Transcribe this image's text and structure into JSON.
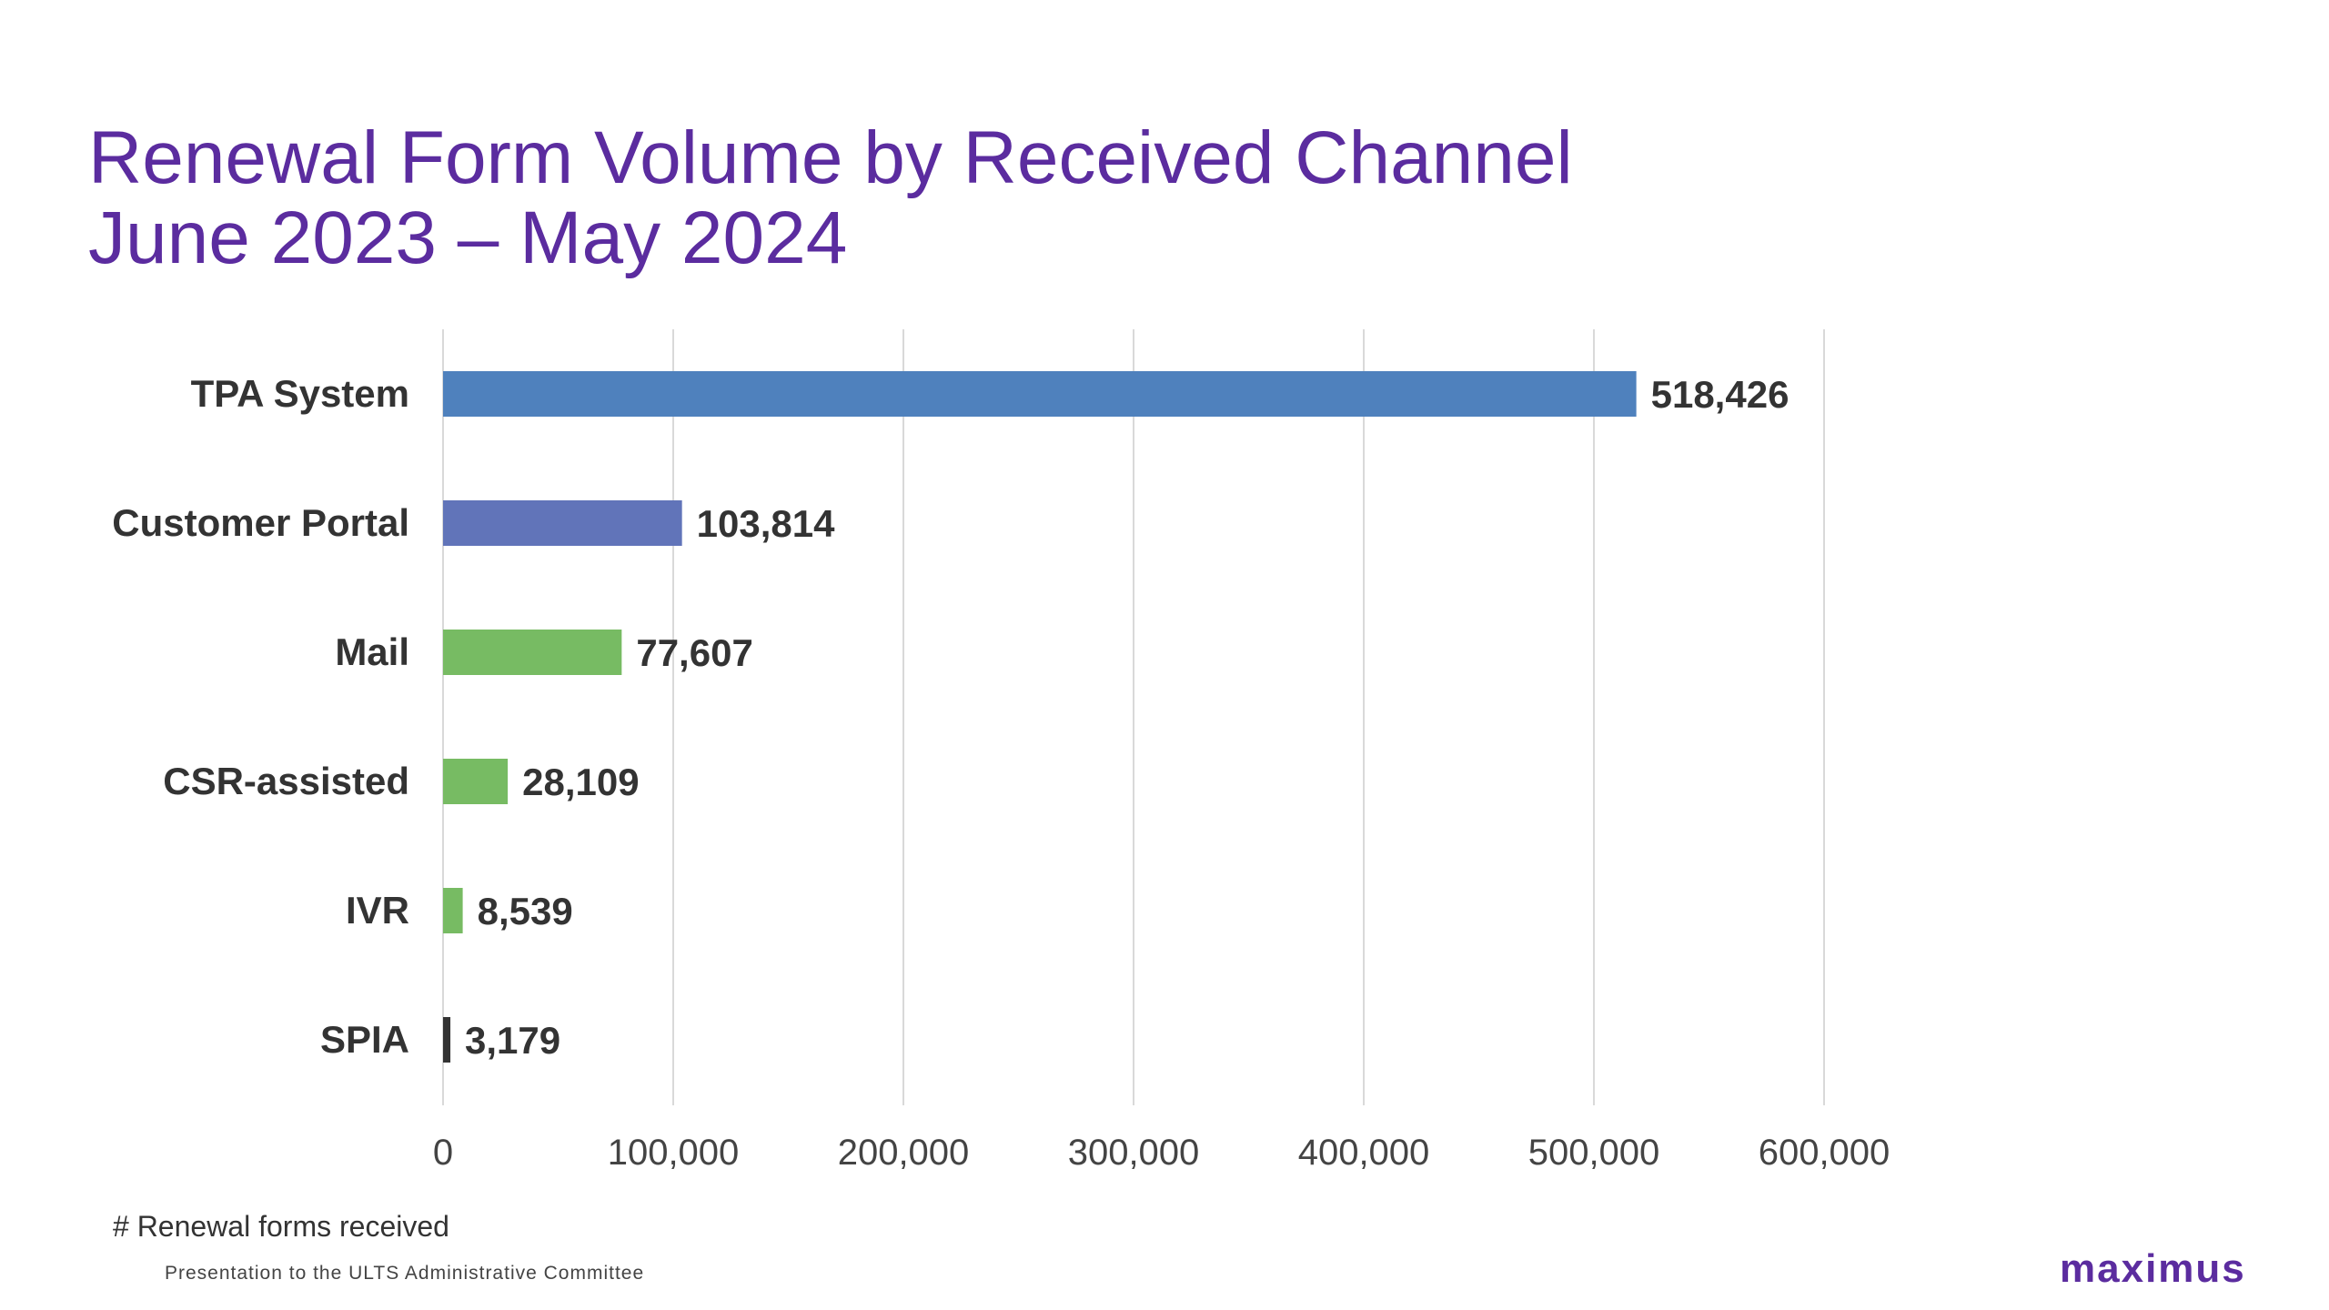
{
  "title": {
    "line1": "Renewal Form Volume by Received Channel",
    "line2": "June 2023 – May 2024"
  },
  "footer": {
    "presentation": "Presentation to the ULTS Administrative Committee",
    "brand": "maximus"
  },
  "colors": {
    "title": "#5b2c9f",
    "gridline": "#d9d9d9",
    "text": "#333333"
  },
  "chart_data": {
    "type": "bar",
    "orientation": "horizontal",
    "categories": [
      "TPA System",
      "Customer Portal",
      "Mail",
      "CSR-assisted",
      "IVR",
      "SPIA"
    ],
    "values": [
      518426,
      103814,
      77607,
      28109,
      8539,
      3179
    ],
    "value_labels": [
      "518,426",
      "103,814",
      "77,607",
      "28,109",
      "8,539",
      "3,179"
    ],
    "bar_colors": [
      "#4f81bd",
      "#6174b9",
      "#77bb63",
      "#77bb63",
      "#77bb63",
      "#333333"
    ],
    "xlabel": "# Renewal forms received",
    "ylabel": "",
    "xlim": [
      0,
      600000
    ],
    "xticks": [
      0,
      100000,
      200000,
      300000,
      400000,
      500000,
      600000
    ],
    "xtick_labels": [
      "0",
      "100,000",
      "200,000",
      "300,000",
      "400,000",
      "500,000",
      "600,000"
    ],
    "grid": true,
    "legend": "none"
  }
}
